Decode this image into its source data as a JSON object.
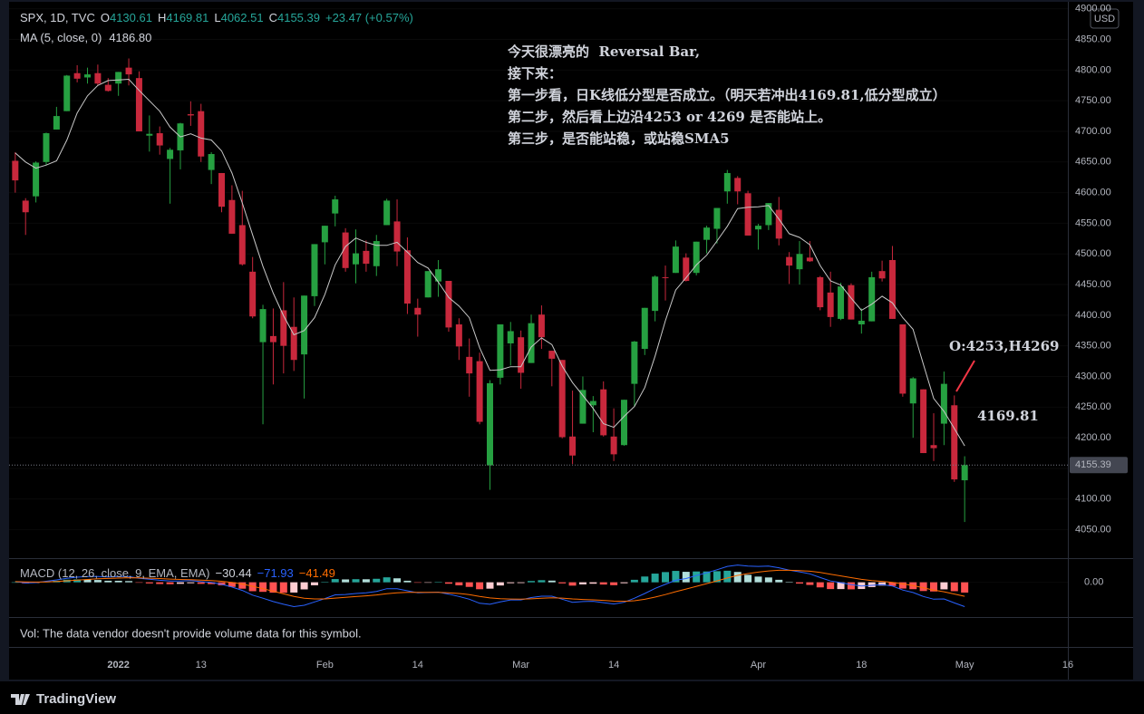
{
  "header": {
    "symbol": "SPX, 1D, TVC",
    "ohlc": [
      {
        "key": "O",
        "value": "4130.61"
      },
      {
        "key": "H",
        "value": "4169.81"
      },
      {
        "key": "L",
        "value": "4062.51"
      },
      {
        "key": "C",
        "value": "4155.39"
      }
    ],
    "change": "+23.47 (+0.57%)",
    "value_color": "#26a69a"
  },
  "annotations": [
    {
      "text": "今天很漂亮的  Reversal Bar,",
      "color": "#2196f3"
    },
    {
      "text": "接下来：",
      "color": "#f23645"
    },
    {
      "text": "第一步看，日K线低分型是否成立。（明天若冲出4169.81,低分型成立）",
      "color": "#f23645"
    },
    {
      "text": "第二步，然后看上边沿4253 or 4269 是否能站上。",
      "color": "#f23645"
    },
    {
      "text": "第三步，是否能站稳，或站稳SMA5",
      "color": "#22ab54"
    }
  ],
  "price_notes": [
    {
      "text": "O:4253,H4269",
      "color": "#f23645"
    },
    {
      "text": "4169.81",
      "color": "#ffeb3b"
    }
  ],
  "vol_note": "Vol: The data vendor doesn't provide volume data for this symbol.",
  "currency": "USD",
  "brand": "TradingView",
  "chart_data": [
    {
      "type": "candlestick",
      "up_color": "#26a041",
      "down_color": "#c8283c",
      "xlim": [
        -0.6,
        102
      ],
      "xticks": [
        {
          "value": 10,
          "label": "2022"
        },
        {
          "value": 18,
          "label": "13"
        },
        {
          "value": 30,
          "label": "Feb"
        },
        {
          "value": 39,
          "label": "14"
        },
        {
          "value": 49,
          "label": "Mar"
        },
        {
          "value": 58,
          "label": "14"
        },
        {
          "value": 72,
          "label": "Apr"
        },
        {
          "value": 82,
          "label": "18"
        },
        {
          "value": 92,
          "label": "May"
        },
        {
          "value": 102,
          "label": "16"
        }
      ],
      "ylim": [
        4005,
        4907
      ],
      "yticks": [
        {
          "value": 4050,
          "label": "4050.00"
        },
        {
          "value": 4100,
          "label": "4100.00"
        },
        {
          "value": 4150,
          "label": "4150.00"
        },
        {
          "value": 4200,
          "label": "4200.00"
        },
        {
          "value": 4250,
          "label": "4250.00"
        },
        {
          "value": 4300,
          "label": "4300.00"
        },
        {
          "value": 4350,
          "label": "4350.00"
        },
        {
          "value": 4400,
          "label": "4400.00"
        },
        {
          "value": 4450,
          "label": "4450.00"
        },
        {
          "value": 4500,
          "label": "4500.00"
        },
        {
          "value": 4550,
          "label": "4550.00"
        },
        {
          "value": 4600,
          "label": "4600.00"
        },
        {
          "value": 4650,
          "label": "4650.00"
        },
        {
          "value": 4700,
          "label": "4700.00"
        },
        {
          "value": 4750,
          "label": "4750.00"
        },
        {
          "value": 4800,
          "label": "4800.00"
        },
        {
          "value": 4850,
          "label": "4850.00"
        },
        {
          "value": 4900,
          "label": "4900.00"
        }
      ],
      "last_price": {
        "value": 4155.39,
        "label": "4155.39"
      },
      "open": [
        4652,
        4587,
        4594,
        4650,
        4703,
        4733,
        4795,
        4788,
        4795,
        4776,
        4778,
        4804,
        4787,
        4693,
        4697,
        4655,
        4669,
        4728,
        4733,
        4637,
        4632,
        4588,
        4547,
        4471,
        4356,
        4366,
        4408,
        4381,
        4336,
        4431,
        4519,
        4566,
        4535,
        4483,
        4505,
        4480,
        4547,
        4553,
        4506,
        4412,
        4429,
        4455,
        4456,
        4385,
        4332,
        4325,
        4155,
        4298,
        4354,
        4364,
        4322,
        4401,
        4342,
        4327,
        4202,
        4223,
        4253,
        4279,
        4202,
        4188,
        4288,
        4345,
        4407,
        4462,
        4469,
        4494,
        4469,
        4523,
        4541,
        4602,
        4624,
        4599,
        4540,
        4547,
        4572,
        4495,
        4475,
        4494,
        4462,
        4437,
        4394,
        4449,
        4385,
        4390,
        4472,
        4490,
        4385,
        4256,
        4279,
        4188,
        4223,
        4253,
        4130.61
      ],
      "high": [
        4666,
        4591,
        4651,
        4698,
        4740,
        4792,
        4808,
        4804,
        4809,
        4787,
        4797,
        4819,
        4798,
        4726,
        4708,
        4673,
        4714,
        4749,
        4745,
        4666,
        4632,
        4612,
        4603,
        4495,
        4417,
        4411,
        4454,
        4429,
        4432,
        4516,
        4546,
        4595,
        4542,
        4540,
        4522,
        4531,
        4590,
        4589,
        4527,
        4427,
        4472,
        4490,
        4456,
        4395,
        4362,
        4339,
        4294,
        4385,
        4389,
        4375,
        4401,
        4416,
        4342,
        4327,
        4277,
        4300,
        4268,
        4292,
        4248,
        4262,
        4358,
        4412,
        4465,
        4481,
        4522,
        4501,
        4520,
        4546,
        4575,
        4637,
        4627,
        4603,
        4549,
        4583,
        4593,
        4503,
        4521,
        4521,
        4464,
        4471,
        4453,
        4452,
        4411,
        4471,
        4489,
        4513,
        4385,
        4299,
        4279,
        4240,
        4308,
        4269,
        4169.81
      ],
      "low": [
        4600,
        4531,
        4584,
        4645,
        4703,
        4733,
        4780,
        4778,
        4775,
        4765,
        4758,
        4775,
        4700,
        4667,
        4662,
        4582,
        4638,
        4709,
        4650,
        4614,
        4568,
        4533,
        4481,
        4395,
        4222,
        4287,
        4305,
        4309,
        4264,
        4415,
        4483,
        4545,
        4471,
        4452,
        4471,
        4464,
        4547,
        4480,
        4402,
        4365,
        4429,
        4430,
        4373,
        4327,
        4267,
        4222,
        4115,
        4287,
        4318,
        4280,
        4322,
        4345,
        4284,
        4199,
        4157,
        4223,
        4209,
        4202,
        4162,
        4187,
        4251,
        4335,
        4390,
        4424,
        4469,
        4455,
        4465,
        4501,
        4517,
        4582,
        4581,
        4530,
        4507,
        4539,
        4514,
        4451,
        4450,
        4487,
        4408,
        4381,
        4392,
        4393,
        4370,
        4390,
        4455,
        4394,
        4267,
        4200,
        4175,
        4162,
        4188,
        4128,
        4062.51
      ],
      "close": [
        4620,
        4568,
        4649,
        4697,
        4725,
        4791,
        4786,
        4793,
        4778,
        4766,
        4797,
        4793,
        4700,
        4696,
        4677,
        4670,
        4713,
        4726,
        4659,
        4663,
        4577,
        4533,
        4483,
        4398,
        4410,
        4356,
        4350,
        4327,
        4432,
        4516,
        4546,
        4589,
        4477,
        4501,
        4484,
        4521,
        4587,
        4504,
        4419,
        4401,
        4472,
        4475,
        4380,
        4349,
        4305,
        4226,
        4289,
        4385,
        4374,
        4306,
        4387,
        4364,
        4329,
        4201,
        4171,
        4278,
        4260,
        4204,
        4173,
        4262,
        4357,
        4412,
        4463,
        4461,
        4512,
        4456,
        4520,
        4543,
        4575,
        4632,
        4602,
        4530,
        4546,
        4583,
        4525,
        4481,
        4500,
        4488,
        4413,
        4397,
        4447,
        4393,
        4391,
        4462,
        4460,
        4394,
        4272,
        4297,
        4175,
        4183,
        4288,
        4132,
        4155.39
      ],
      "series": [
        {
          "name": "MA (5, close, 0)",
          "color": "#c8c8c8",
          "legend_value": "4186.80",
          "values": [
            4665,
            4650,
            4640,
            4645,
            4652,
            4686,
            4730,
            4758,
            4775,
            4783,
            4784,
            4785,
            4767,
            4750,
            4733,
            4707,
            4691,
            4696,
            4689,
            4686,
            4668,
            4632,
            4583,
            4531,
            4480,
            4436,
            4399,
            4368,
            4375,
            4396,
            4434,
            4482,
            4512,
            4526,
            4519,
            4514,
            4514,
            4519,
            4503,
            4486,
            4477,
            4454,
            4429,
            4415,
            4396,
            4347,
            4310,
            4311,
            4316,
            4316,
            4348,
            4363,
            4352,
            4317,
            4290,
            4269,
            4248,
            4223,
            4217,
            4235,
            4251,
            4282,
            4333,
            4391,
            4441,
            4461,
            4482,
            4498,
            4521,
            4545,
            4574,
            4576,
            4577,
            4579,
            4557,
            4533,
            4527,
            4515,
            4481,
            4456,
            4449,
            4428,
            4408,
            4418,
            4431,
            4420,
            4396,
            4377,
            4320,
            4264,
            4243,
            4215,
            4186.8
          ]
        }
      ]
    },
    {
      "type": "macd",
      "title": "MACD (12, 26, close, 9, EMA, EMA)",
      "legend_values": [
        "−30.44",
        "−71.93",
        "−41.49"
      ],
      "xlim": [
        -0.6,
        102
      ],
      "ylim": [
        -100,
        66
      ],
      "yticks": [
        {
          "value": 0,
          "label": "0.00"
        }
      ],
      "hist_colors": {
        "grow_above": "#26a69a",
        "fall_above": "#b2dfdb",
        "grow_below": "#ffcdd2",
        "fall_below": "#ff5252"
      },
      "histogram": [
        0,
        -3.2,
        -1.8,
        1.8,
        4.6,
        7.7,
        8.6,
        8.5,
        6.8,
        4.6,
        4.5,
        3.6,
        -1.1,
        -3.3,
        -5.0,
        -5.6,
        -4.5,
        -2.8,
        -4.6,
        -5.3,
        -9.0,
        -13.6,
        -18.9,
        -26.3,
        -28.2,
        -30.6,
        -30.9,
        -30.3,
        -21.0,
        -8.8,
        1.0,
        9.6,
        8.5,
        9.2,
        9.0,
        10.4,
        14.7,
        11.8,
        4.6,
        -1.1,
        -0.1,
        0.7,
        -4.2,
        -9.0,
        -13.6,
        -20.5,
        -18.8,
        -9.4,
        -2.7,
        -2.2,
        3.8,
        6.2,
        5.0,
        -3.2,
        -9.8,
        -6.2,
        -4.2,
        -6.6,
        -8.5,
        -2.8,
        7.4,
        17.1,
        25.7,
        30.2,
        33.7,
        31.0,
        32.0,
        32.0,
        32.8,
        34.2,
        30.6,
        22.1,
        16.9,
        14.3,
        7.4,
        0.4,
        -3.7,
        -7.8,
        -15.0,
        -20.0,
        -20.0,
        -20.8,
        -19.8,
        -14.2,
        -9.8,
        -11.0,
        -18.4,
        -20.3,
        -25.8,
        -27.1,
        -20.9,
        -26.3,
        -30.44
      ],
      "series": [
        {
          "color": "#2962ff",
          "values": [
            2,
            -2,
            -1,
            3,
            7,
            12,
            15,
            17,
            17,
            16,
            17,
            17,
            12,
            9,
            6,
            4,
            4,
            5,
            2,
            0,
            -6,
            -14,
            -24,
            -38,
            -47,
            -57,
            -65,
            -72,
            -68,
            -58,
            -48,
            -37,
            -36,
            -33,
            -31,
            -27,
            -19,
            -19,
            -25,
            -31,
            -30,
            -29,
            -35,
            -42,
            -50,
            -62,
            -65,
            -58,
            -52,
            -52,
            -45,
            -41,
            -41,
            -50,
            -59,
            -57,
            -56,
            -60,
            -64,
            -59,
            -47,
            -33,
            -18,
            -6,
            6,
            11,
            20,
            28,
            37,
            47,
            51,
            48,
            47,
            48,
            43,
            36,
            31,
            25,
            14,
            4,
            -1,
            -7,
            -11,
            -9,
            -7,
            -11,
            -23,
            -30,
            -42,
            -50,
            -49,
            -61,
            -71.93
          ]
        },
        {
          "color": "#ff6d00",
          "values": [
            2,
            1.2,
            0.8,
            1.2,
            2.4,
            4.3,
            6.4,
            8.5,
            10.2,
            11.4,
            12.5,
            13.4,
            13.1,
            12.3,
            11.0,
            9.6,
            8.5,
            7.8,
            6.6,
            5.3,
            3.0,
            -0.4,
            -5.1,
            -11.7,
            -18.8,
            -26.4,
            -34.1,
            -41.7,
            -47.0,
            -49.2,
            -49.0,
            -46.6,
            -44.5,
            -42.2,
            -40.0,
            -37.4,
            -33.7,
            -30.8,
            -29.6,
            -29.9,
            -29.9,
            -29.7,
            -30.8,
            -33.0,
            -36.4,
            -41.5,
            -46.2,
            -48.6,
            -49.3,
            -49.8,
            -48.8,
            -47.2,
            -46.0,
            -46.8,
            -49.2,
            -50.8,
            -51.8,
            -53.4,
            -55.5,
            -56.2,
            -54.4,
            -50.1,
            -43.7,
            -36.2,
            -27.7,
            -20.0,
            -12.0,
            -4.0,
            4.2,
            12.8,
            20.4,
            25.9,
            30.1,
            33.7,
            35.6,
            35.6,
            34.7,
            32.8,
            29.0,
            24.0,
            19.0,
            13.8,
            8.8,
            5.2,
            2.8,
            0.0,
            -4.6,
            -9.7,
            -16.2,
            -22.9,
            -28.1,
            -34.7,
            -41.49
          ]
        }
      ]
    }
  ]
}
